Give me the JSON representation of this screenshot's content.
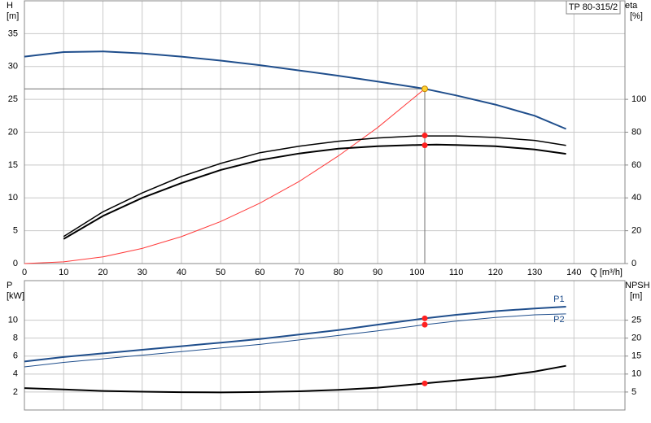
{
  "chart_data": [
    {
      "type": "line",
      "title": "TP 80-315/2",
      "xlabel": "Q [m³/h]",
      "ylabel": "H",
      "yunit": "[m]",
      "y2label": "eta",
      "y2unit": "[%]",
      "xlim": [
        0,
        153
      ],
      "xticks": [
        0,
        10,
        20,
        30,
        40,
        50,
        60,
        70,
        80,
        90,
        100,
        110,
        120,
        130,
        140
      ],
      "show_xtick_labels": true,
      "ylim": [
        0,
        40
      ],
      "yticks": [
        0,
        5,
        10,
        15,
        20,
        25,
        30,
        35
      ],
      "y2lim": [
        0,
        160
      ],
      "y2ticks": [
        0,
        20,
        40,
        60,
        80,
        100
      ],
      "grid": true,
      "guides": {
        "x": 102,
        "y": 26.6,
        "color": "#707070"
      },
      "series": [
        {
          "style": "line",
          "color": "#1f4e8c",
          "width": 2,
          "axis": "y",
          "x": [
            0,
            10,
            20,
            30,
            40,
            50,
            60,
            70,
            80,
            90,
            100,
            102,
            110,
            120,
            130,
            138
          ],
          "values": [
            31.5,
            32.2,
            32.3,
            32.0,
            31.5,
            30.9,
            30.2,
            29.4,
            28.6,
            27.7,
            26.8,
            26.6,
            25.6,
            24.2,
            22.5,
            20.5
          ]
        },
        {
          "style": "line",
          "color": "#ff3b3b",
          "width": 1,
          "axis": "y",
          "x": [
            0,
            10,
            20,
            30,
            40,
            50,
            60,
            70,
            80,
            90,
            102
          ],
          "values": [
            0,
            0.26,
            1.02,
            2.3,
            4.1,
            6.4,
            9.2,
            12.5,
            16.4,
            20.7,
            26.6
          ]
        },
        {
          "style": "line",
          "color": "#000000",
          "width": 1.5,
          "axis": "y2",
          "x": [
            10,
            20,
            30,
            40,
            50,
            60,
            70,
            80,
            90,
            100,
            110,
            120,
            130,
            138
          ],
          "values": [
            16.5,
            31.5,
            43,
            53,
            61,
            67.5,
            71.5,
            74.5,
            76.5,
            77.7,
            77.7,
            76.8,
            75,
            72
          ]
        },
        {
          "style": "line",
          "color": "#000000",
          "width": 2,
          "axis": "y2",
          "x": [
            10,
            20,
            30,
            40,
            50,
            60,
            70,
            80,
            90,
            100,
            105,
            110,
            120,
            130,
            138
          ],
          "values": [
            15,
            29,
            40,
            49,
            57,
            63,
            67,
            70,
            71.5,
            72.2,
            72.4,
            72.2,
            71.5,
            69.5,
            66.8
          ]
        },
        {
          "style": "points",
          "color": "#ff2020",
          "axis": "y2",
          "x": [
            102,
            102
          ],
          "values": [
            78,
            72
          ]
        },
        {
          "style": "points",
          "color": "#ffd230",
          "axis": "y",
          "x": [
            102
          ],
          "values": [
            26.6
          ]
        }
      ]
    },
    {
      "type": "line",
      "ylabel": "P",
      "yunit": "[kW]",
      "y2label": "NPSH",
      "y2unit": "[m]",
      "xlim": [
        0,
        153
      ],
      "xticks": [
        0,
        10,
        20,
        30,
        40,
        50,
        60,
        70,
        80,
        90,
        100,
        110,
        120,
        130,
        140
      ],
      "show_xtick_labels": false,
      "ylim": [
        0,
        14.4
      ],
      "yticks": [
        2,
        4,
        6,
        8,
        10
      ],
      "y2lim": [
        0,
        36
      ],
      "y2ticks": [
        5,
        10,
        15,
        20,
        25
      ],
      "grid": true,
      "series": [
        {
          "name": "P1",
          "label_side": "above",
          "style": "line",
          "color": "#1f4e8c",
          "width": 2,
          "axis": "y",
          "x": [
            0,
            10,
            20,
            30,
            40,
            50,
            60,
            70,
            80,
            90,
            102,
            110,
            120,
            130,
            138
          ],
          "values": [
            5.4,
            5.9,
            6.3,
            6.7,
            7.1,
            7.5,
            7.9,
            8.4,
            8.9,
            9.5,
            10.2,
            10.6,
            11.0,
            11.3,
            11.5
          ]
        },
        {
          "name": "P2",
          "label_side": "below",
          "style": "line",
          "color": "#1f4e8c",
          "width": 1,
          "axis": "y",
          "x": [
            0,
            10,
            20,
            30,
            40,
            50,
            60,
            70,
            80,
            90,
            102,
            110,
            120,
            130,
            138
          ],
          "values": [
            4.8,
            5.3,
            5.7,
            6.1,
            6.5,
            6.9,
            7.3,
            7.8,
            8.3,
            8.8,
            9.5,
            9.9,
            10.3,
            10.6,
            10.7
          ]
        },
        {
          "style": "line",
          "color": "#000000",
          "width": 2,
          "axis": "y2",
          "x": [
            0,
            10,
            20,
            30,
            40,
            50,
            60,
            70,
            80,
            90,
            102,
            110,
            120,
            130,
            138
          ],
          "values": [
            6.1,
            5.7,
            5.3,
            5.1,
            4.95,
            4.9,
            5.0,
            5.2,
            5.6,
            6.2,
            7.4,
            8.2,
            9.2,
            10.7,
            12.3
          ]
        },
        {
          "style": "points",
          "color": "#ff2020",
          "axis": "y",
          "x": [
            102,
            102
          ],
          "values": [
            10.2,
            9.5
          ]
        },
        {
          "style": "points",
          "color": "#ff2020",
          "axis": "y2",
          "x": [
            102
          ],
          "values": [
            7.4
          ]
        }
      ]
    }
  ]
}
